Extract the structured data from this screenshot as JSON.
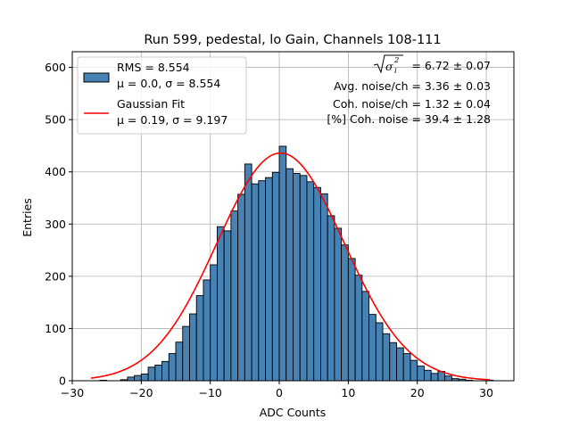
{
  "chart_data": {
    "type": "bar",
    "title": "Run 599, pedestal, lo Gain, Channels 108-111",
    "xlabel": "ADC Counts",
    "ylabel": "Entries",
    "xlim": [
      -30,
      34
    ],
    "ylim": [
      0,
      630
    ],
    "xticks": [
      -30,
      -20,
      -10,
      0,
      10,
      20,
      30
    ],
    "yticks": [
      0,
      100,
      200,
      300,
      400,
      500,
      600
    ],
    "xtick_labels": [
      "−30",
      "−20",
      "−10",
      "0",
      "10",
      "20",
      "30"
    ],
    "ytick_labels": [
      "0",
      "100",
      "200",
      "300",
      "400",
      "500",
      "600"
    ],
    "grid": true,
    "bar_color": "#4682b4",
    "fit_color": "#ff0000",
    "histogram": {
      "bin_width": 1,
      "bin_starts": [
        -26,
        -25,
        -24,
        -23,
        -22,
        -21,
        -20,
        -19,
        -18,
        -17,
        -16,
        -15,
        -14,
        -13,
        -12,
        -11,
        -10,
        -9,
        -8,
        -7,
        -6,
        -5,
        -4,
        -3,
        -2,
        -1,
        0,
        1,
        2,
        3,
        4,
        5,
        6,
        7,
        8,
        9,
        10,
        11,
        12,
        13,
        14,
        15,
        16,
        17,
        18,
        19,
        20,
        21,
        22,
        23,
        24,
        25,
        26,
        27,
        28,
        29,
        30
      ],
      "counts": [
        1,
        0,
        0,
        2,
        7,
        10,
        13,
        26,
        30,
        37,
        52,
        74,
        104,
        128,
        163,
        193,
        222,
        295,
        287,
        325,
        357,
        415,
        377,
        383,
        389,
        399,
        449,
        406,
        397,
        393,
        381,
        370,
        358,
        316,
        292,
        260,
        234,
        202,
        171,
        127,
        111,
        90,
        73,
        63,
        52,
        39,
        28,
        20,
        14,
        18,
        9,
        4,
        3,
        1,
        0,
        0,
        1
      ]
    },
    "fit": {
      "type": "gaussian",
      "amplitude": 436,
      "mu": 0.19,
      "sigma": 9.197,
      "x_range": [
        -27.3,
        30.5
      ]
    },
    "legend": {
      "position": "upper-left",
      "entries": [
        {
          "kind": "patch",
          "line1": "RMS = 8.554",
          "line2": "μ = 0.0, σ = 8.554"
        },
        {
          "kind": "line",
          "line1": "Gaussian Fit",
          "line2": "μ = 0.19, σ = 9.197"
        }
      ]
    },
    "annotations": {
      "sigma_value": "= 6.72 ± 0.07",
      "sigma_symbol": "σ",
      "sigma_sub": "i",
      "sigma_sup": "2",
      "avg_noise": "Avg. noise/ch = 3.36 ± 0.03",
      "coh_noise": "Coh. noise/ch = 1.32 ± 0.04",
      "coh_pct": "[%] Coh. noise = 39.4 ± 1.28"
    }
  }
}
